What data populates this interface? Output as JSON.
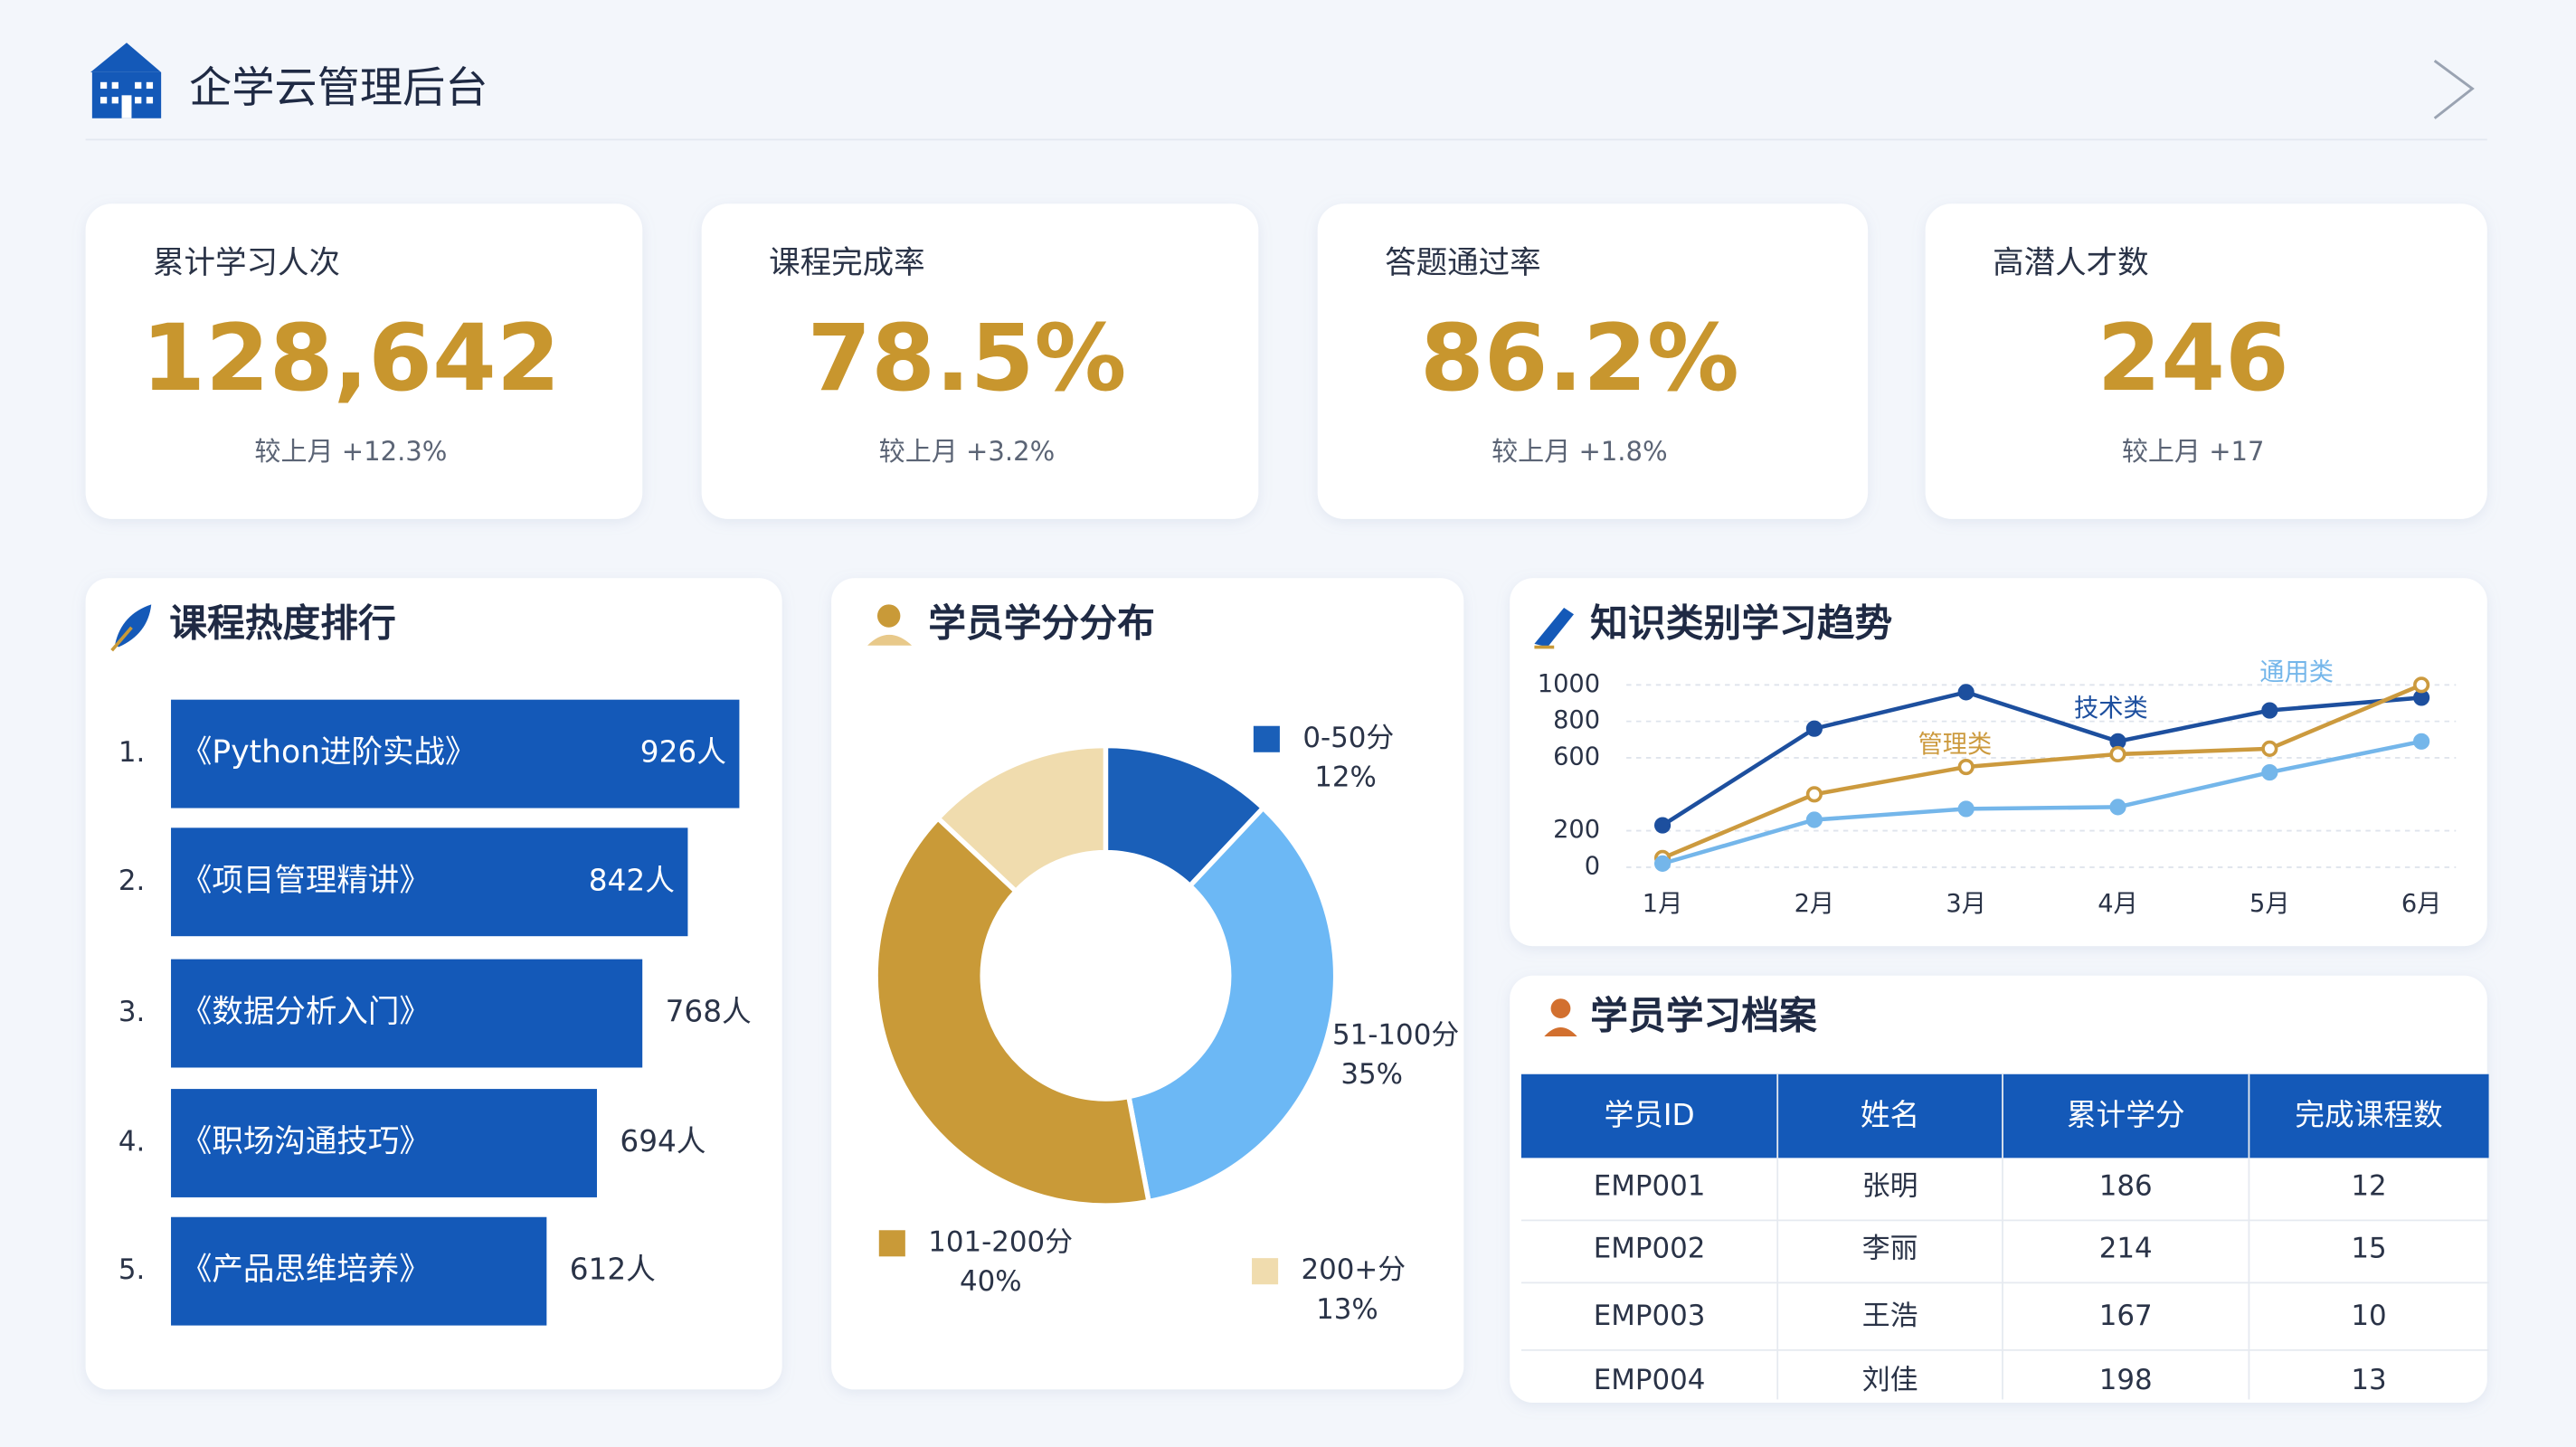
{
  "header": {
    "title": "企学云管理后台"
  },
  "kpis": [
    {
      "label": "累计学习人次",
      "value": "128,642",
      "change": "较上月 +12.3%"
    },
    {
      "label": "课程完成率",
      "value": "78.5%",
      "change": "较上月 +3.2%"
    },
    {
      "label": "答题通过率",
      "value": "86.2%",
      "change": "较上月 +1.8%"
    },
    {
      "label": "高潜人才数",
      "value": "246",
      "change": "较上月 +17"
    }
  ],
  "chart_data": [
    {
      "type": "bar",
      "title": "课程热度排行",
      "ranks": [
        "1.",
        "2.",
        "3.",
        "4.",
        "5."
      ],
      "categories": [
        "《Python进阶实战》",
        "《项目管理精讲》",
        "《数据分析入门》",
        "《职场沟通技巧》",
        "《产品思维培养》"
      ],
      "values": [
        926,
        842,
        768,
        694,
        612
      ],
      "value_labels": [
        "926人",
        "842人",
        "768人",
        "694人",
        "612人"
      ],
      "color": "#1459b8"
    },
    {
      "type": "pie",
      "title": "学员学分分布",
      "categories": [
        "0-50分",
        "51-100分",
        "101-200分",
        "200+分"
      ],
      "values": [
        12,
        35,
        40,
        13
      ],
      "value_labels": [
        "12%",
        "35%",
        "40%",
        "13%"
      ],
      "colors": [
        "#1a5fb8",
        "#6cb8f5",
        "#c99a38",
        "#f0dcae"
      ]
    },
    {
      "type": "line",
      "title": "知识类别学习趋势",
      "categories": [
        "1月",
        "2月",
        "3月",
        "4月",
        "5月",
        "6月"
      ],
      "ylim": [
        0,
        1000
      ],
      "yticks": [
        0,
        200,
        600,
        800,
        1000
      ],
      "grid": true,
      "series": [
        {
          "name": "技术类",
          "color": "#1d4f9e",
          "values": [
            230,
            760,
            960,
            690,
            860,
            930
          ]
        },
        {
          "name": "管理类",
          "color": "#cc9a3e",
          "values": [
            50,
            400,
            550,
            620,
            650,
            1000
          ]
        },
        {
          "name": "通用类",
          "color": "#74b6ea",
          "values": [
            20,
            260,
            320,
            330,
            520,
            690
          ]
        }
      ]
    }
  ],
  "table": {
    "title": "学员学习档案",
    "columns": [
      "学员ID",
      "姓名",
      "累计学分",
      "完成课程数"
    ],
    "rows": [
      [
        "EMP001",
        "张明",
        186,
        12
      ],
      [
        "EMP002",
        "李丽",
        214,
        15
      ],
      [
        "EMP003",
        "王浩",
        167,
        10
      ],
      [
        "EMP004",
        "刘佳",
        198,
        13
      ]
    ]
  }
}
